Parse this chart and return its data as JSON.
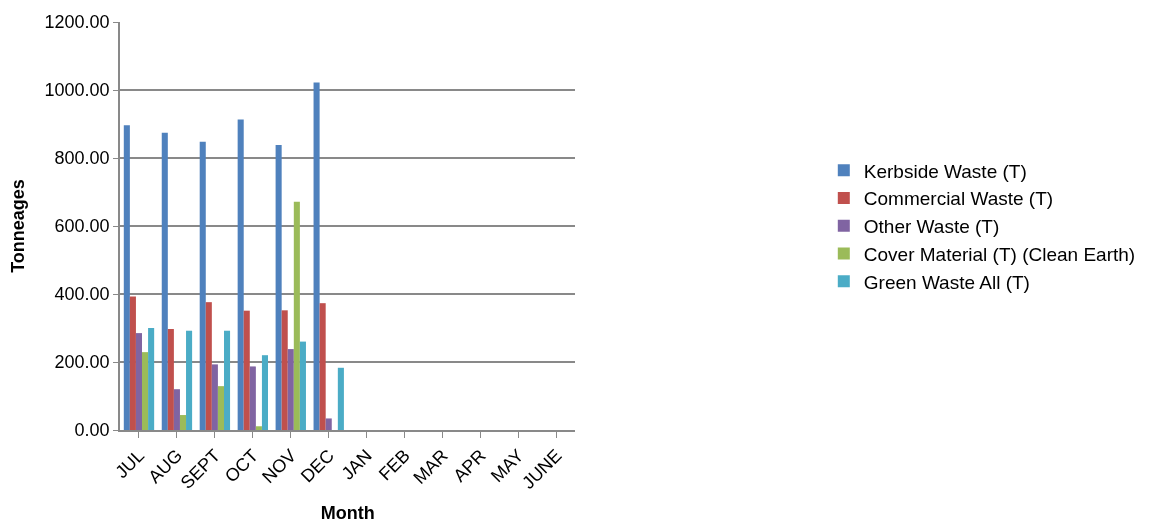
{
  "chart_data": {
    "type": "bar",
    "xlabel": "Month",
    "ylabel": "Tonneages",
    "categories": [
      "JUL",
      "AUG",
      "SEPT",
      "OCT",
      "NOV",
      "DEC",
      "JAN",
      "FEB",
      "MAR",
      "APR",
      "MAY",
      "JUNE"
    ],
    "series": [
      {
        "name": "Kerbside Waste (T)",
        "color": "#4f81bd",
        "values": [
          896,
          874,
          848,
          913,
          838,
          1022,
          null,
          null,
          null,
          null,
          null,
          null
        ]
      },
      {
        "name": "Commercial Waste (T)",
        "color": "#c0504d",
        "values": [
          393,
          297,
          376,
          351,
          352,
          373,
          null,
          null,
          null,
          null,
          null,
          null
        ]
      },
      {
        "name": "Other Waste (T)",
        "color": "#8064a2",
        "values": [
          285,
          120,
          193,
          187,
          238,
          34,
          null,
          null,
          null,
          null,
          null,
          null
        ]
      },
      {
        "name": "Cover Material (T) (Clean Earth)",
        "color": "#9bbb59",
        "values": [
          229,
          44,
          129,
          11,
          671,
          null,
          null,
          null,
          null,
          null,
          null,
          null
        ]
      },
      {
        "name": "Green Waste All (T)",
        "color": "#4bacc6",
        "values": [
          300,
          292,
          292,
          220,
          260,
          183,
          null,
          null,
          null,
          null,
          null,
          null
        ]
      }
    ],
    "ylim": [
      0,
      1200
    ],
    "yticks": [
      {
        "value": 0,
        "label": "0.00"
      },
      {
        "value": 200,
        "label": "200.00"
      },
      {
        "value": 400,
        "label": "400.00"
      },
      {
        "value": 600,
        "label": "600.00"
      },
      {
        "value": 800,
        "label": "800.00"
      },
      {
        "value": 1000,
        "label": "1000.00"
      },
      {
        "value": 1200,
        "label": "1200.00"
      }
    ],
    "grid": "y",
    "legend": "right"
  }
}
